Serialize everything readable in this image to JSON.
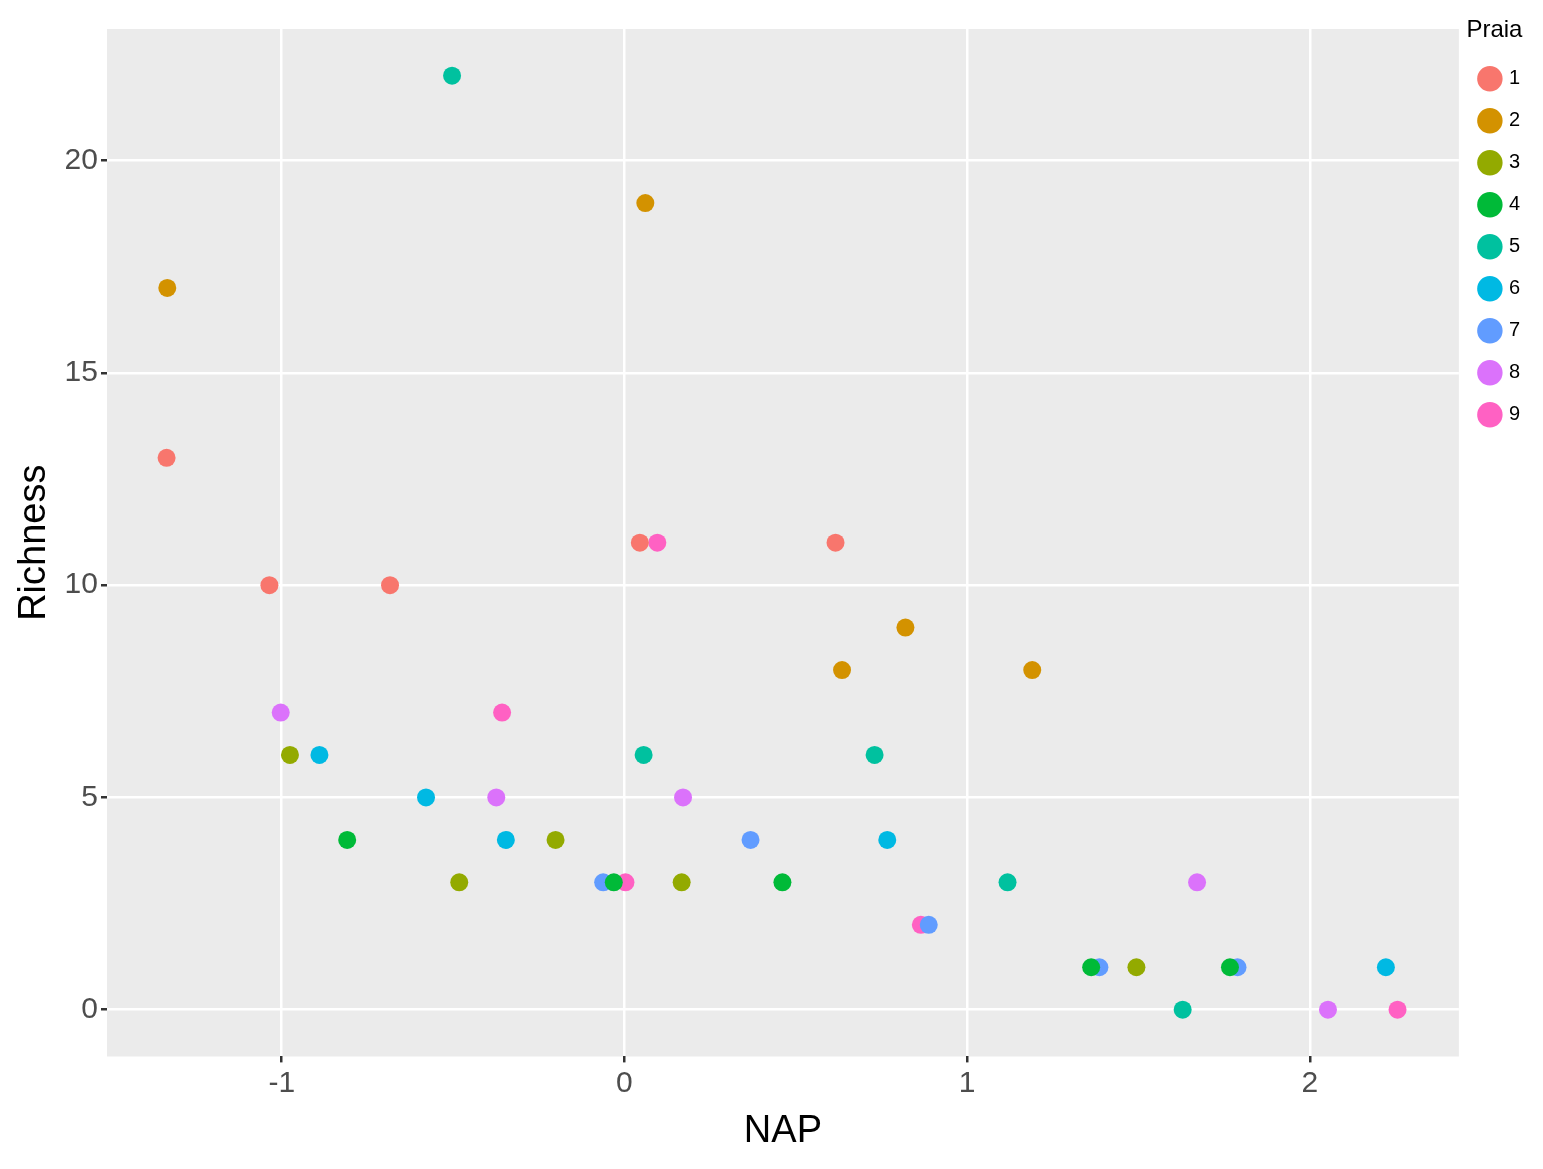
{
  "chart_data": {
    "type": "scatter",
    "xlabel": "NAP",
    "ylabel": "Richness",
    "legend_title": "Praia",
    "legend": "top right",
    "grid": true,
    "marker": "circle",
    "xlim": [
      -1.51,
      2.435
    ],
    "xticks": [
      -1,
      0,
      1,
      2
    ],
    "ylim": [
      -1.1,
      23.1
    ],
    "yticks": [
      0,
      5,
      10,
      15,
      20
    ],
    "series": [
      {
        "name": "1",
        "color": "#f8766d",
        "x": [
          0.045,
          -1.036,
          -1.336,
          0.616,
          -0.684
        ],
        "values": [
          11,
          10,
          13,
          11,
          10
        ]
      },
      {
        "name": "2",
        "color": "#d39200",
        "x": [
          1.19,
          0.82,
          0.635,
          0.061,
          -1.334
        ],
        "values": [
          8,
          9,
          8,
          19,
          17
        ]
      },
      {
        "name": "3",
        "color": "#93aa00",
        "x": [
          -0.976,
          1.494,
          -0.201,
          -0.482,
          0.167
        ],
        "values": [
          6,
          1,
          4,
          3,
          3
        ]
      },
      {
        "name": "4",
        "color": "#00ba38",
        "x": [
          1.767,
          -0.031,
          0.461,
          1.362,
          -0.809
        ],
        "values": [
          1,
          3,
          3,
          1,
          4
        ]
      },
      {
        "name": "5",
        "color": "#00c19f",
        "x": [
          1.118,
          -0.503,
          0.73,
          1.629,
          0.056
        ],
        "values": [
          3,
          22,
          6,
          0,
          6
        ]
      },
      {
        "name": "6",
        "color": "#00b9e3",
        "x": [
          -0.89,
          -0.579,
          -0.346,
          0.767,
          2.222
        ],
        "values": [
          6,
          5,
          4,
          4,
          1
        ]
      },
      {
        "name": "7",
        "color": "#619cff",
        "x": [
          -0.062,
          0.368,
          0.888,
          1.789,
          1.386
        ],
        "values": [
          3,
          4,
          2,
          1,
          1
        ]
      },
      {
        "name": "8",
        "color": "#db72fb",
        "x": [
          -1.003,
          -0.374,
          0.171,
          1.671,
          2.053
        ],
        "values": [
          7,
          5,
          5,
          3,
          0
        ]
      },
      {
        "name": "9",
        "color": "#ff61c3",
        "x": [
          -0.357,
          0.096,
          0.003,
          0.865,
          2.256
        ],
        "values": [
          7,
          11,
          3,
          2,
          0
        ]
      }
    ]
  }
}
